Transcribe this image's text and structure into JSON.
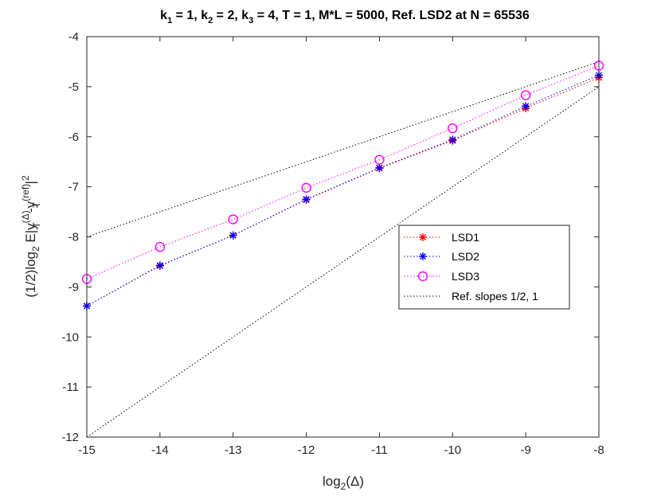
{
  "chart_data": {
    "type": "line",
    "title": "k_1 = 1, k_2 = 2, k_3 = 4, T = 1, M*L  = 5000, Ref. LSD2 at N = 65536",
    "title_parts": [
      "k",
      "1",
      " = 1, k",
      "2",
      " = 2, k",
      "3",
      " = 4, T = 1, M*L  = 5000, Ref. LSD2 at N = 65536"
    ],
    "xlabel": "log_2(Δ)",
    "xlabel_parts": [
      "log",
      "2",
      "(Δ)"
    ],
    "ylabel": "(1/2)log_2 E|y_T^(Δ)-y_T^(ref)|^2",
    "ylabel_parts": {
      "a": "(1/2)log",
      "b": "2",
      "c": " E|y",
      "d": "(Δ)",
      "e": "T",
      "f": "-y",
      "g": "(ref)",
      "h": "T",
      "i": "|",
      "j": "2"
    },
    "xlim": [
      -15,
      -8
    ],
    "ylim": [
      -12,
      -4
    ],
    "xticks": [
      -15,
      -14,
      -13,
      -12,
      -11,
      -10,
      -9,
      -8
    ],
    "yticks": [
      -12,
      -11,
      -10,
      -9,
      -8,
      -7,
      -6,
      -5,
      -4
    ],
    "grid": false,
    "legend_position": "right",
    "x": [
      -15,
      -14,
      -13,
      -12,
      -11,
      -10,
      -9,
      -8
    ],
    "series": [
      {
        "name": "LSD1",
        "color": "#ff0000",
        "marker": "asterisk",
        "values": [
          -9.38,
          -8.58,
          -7.97,
          -7.26,
          -6.63,
          -6.08,
          -5.43,
          -4.82
        ]
      },
      {
        "name": "LSD2",
        "color": "#0000ff",
        "marker": "asterisk",
        "values": [
          -9.38,
          -8.57,
          -7.97,
          -7.25,
          -6.62,
          -6.06,
          -5.39,
          -4.77
        ]
      },
      {
        "name": "LSD3",
        "color": "#ff00ff",
        "marker": "circle",
        "values": [
          -8.84,
          -8.2,
          -7.65,
          -7.02,
          -6.46,
          -5.83,
          -5.17,
          -4.58
        ]
      }
    ],
    "reference_lines": {
      "name": "Ref. slopes 1/2, 1",
      "color": "#000000",
      "lines": [
        {
          "slope": 0.5,
          "x": [
            -15,
            -8
          ],
          "y": [
            -8,
            -4.5
          ]
        },
        {
          "slope": 1,
          "x": [
            -15,
            -8
          ],
          "y": [
            -12,
            -5
          ]
        }
      ]
    }
  }
}
